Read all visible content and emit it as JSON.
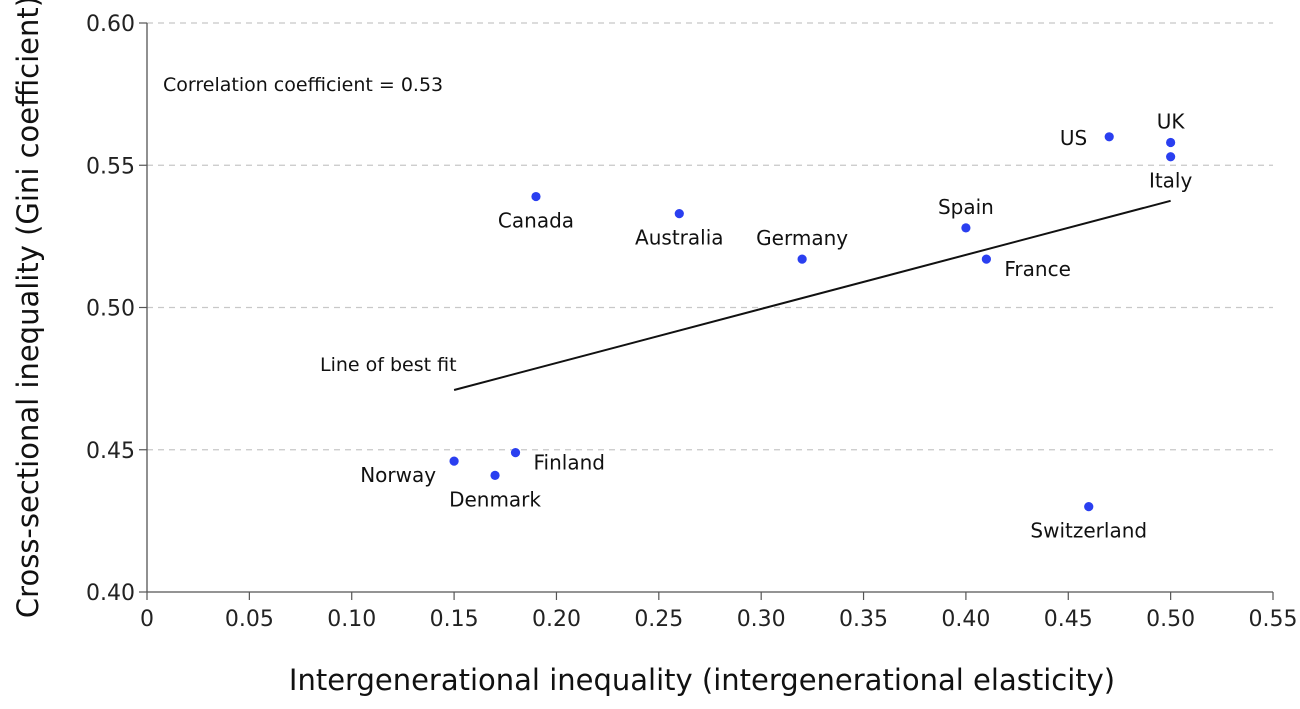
{
  "chart_data": {
    "type": "scatter",
    "xlabel": "Intergenerational inequality (intergenerational elasticity)",
    "ylabel": "Cross-sectional inequality (Gini coefficient)",
    "xlim": [
      0,
      0.55
    ],
    "ylim": [
      0.4,
      0.6
    ],
    "x_ticks": [
      0,
      0.05,
      0.1,
      0.15,
      0.2,
      0.25,
      0.3,
      0.35,
      0.4,
      0.45,
      0.5,
      0.55
    ],
    "x_tick_labels": [
      "0",
      "0.05",
      "0.10",
      "0.15",
      "0.20",
      "0.25",
      "0.30",
      "0.35",
      "0.40",
      "0.45",
      "0.50",
      "0.55"
    ],
    "y_ticks": [
      0.4,
      0.45,
      0.5,
      0.55,
      0.6
    ],
    "y_tick_labels": [
      "0.40",
      "0.45",
      "0.50",
      "0.55",
      "0.60"
    ],
    "grid": "horizontal dashed",
    "point_color": "#2a3ff0",
    "points": [
      {
        "label": "Norway",
        "x": 0.15,
        "y": 0.446,
        "anchor": "end",
        "pos": "below-left"
      },
      {
        "label": "Denmark",
        "x": 0.17,
        "y": 0.441,
        "anchor": "middle",
        "pos": "below"
      },
      {
        "label": "Finland",
        "x": 0.18,
        "y": 0.449,
        "anchor": "start",
        "pos": "below-right"
      },
      {
        "label": "Canada",
        "x": 0.19,
        "y": 0.539,
        "anchor": "middle",
        "pos": "below"
      },
      {
        "label": "Australia",
        "x": 0.26,
        "y": 0.533,
        "anchor": "middle",
        "pos": "below"
      },
      {
        "label": "Germany",
        "x": 0.32,
        "y": 0.517,
        "anchor": "middle",
        "pos": "above"
      },
      {
        "label": "Spain",
        "x": 0.4,
        "y": 0.528,
        "anchor": "middle",
        "pos": "above"
      },
      {
        "label": "France",
        "x": 0.41,
        "y": 0.517,
        "anchor": "start",
        "pos": "below-right"
      },
      {
        "label": "Switzerland",
        "x": 0.46,
        "y": 0.43,
        "anchor": "middle",
        "pos": "below"
      },
      {
        "label": "US",
        "x": 0.47,
        "y": 0.56,
        "anchor": "end",
        "pos": "left"
      },
      {
        "label": "UK",
        "x": 0.5,
        "y": 0.558,
        "anchor": "middle",
        "pos": "above"
      },
      {
        "label": "Italy",
        "x": 0.5,
        "y": 0.553,
        "anchor": "middle",
        "pos": "below"
      }
    ],
    "best_fit": {
      "x": [
        0.15,
        0.5
      ],
      "y": [
        0.471,
        0.5375
      ]
    },
    "annotations": {
      "correlation": "Correlation coefficient = 0.53",
      "fit_label": "Line of best fit"
    }
  }
}
